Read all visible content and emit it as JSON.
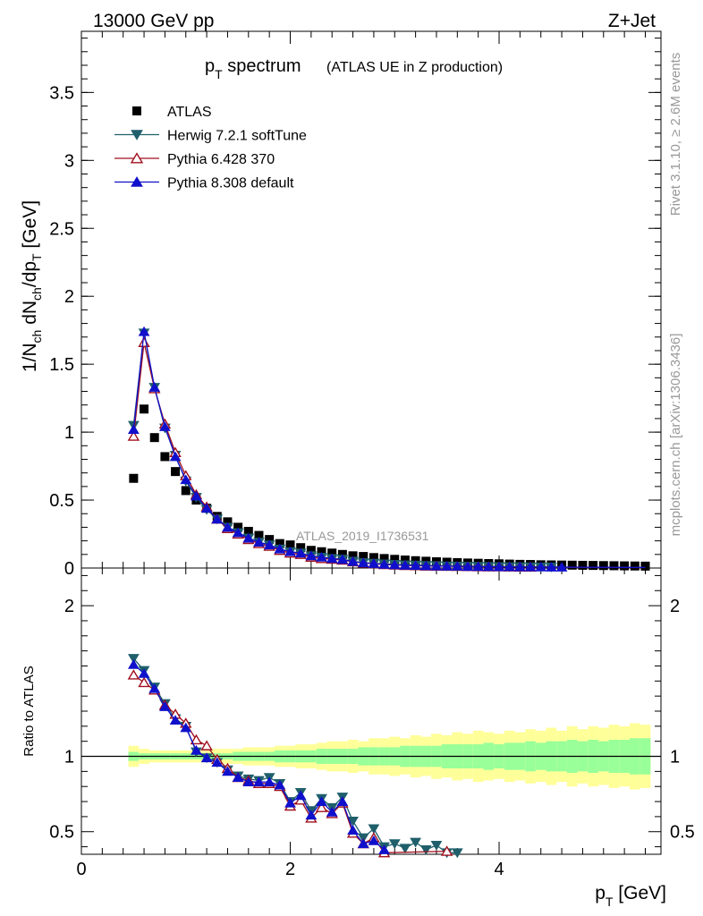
{
  "header": {
    "energy_label": "13000 GeV pp",
    "process_label": "Z+Jet"
  },
  "side_labels": {
    "rivet": "Rivet 3.1.10, ≥ 2.6M events",
    "mcplots": "mcplots.cern.ch [arXiv:1306.3436]"
  },
  "title": {
    "main": "p",
    "main_sub": "T",
    "main_rest": " spectrum",
    "sub": "(ATLAS UE in Z production)"
  },
  "watermark": "ATLAS_2019_I1736531",
  "colors": {
    "atlas": "#000000",
    "herwig": "#1f5f6b",
    "pythia6": "#a0101f",
    "pythia8": "#1010cc",
    "band_inner": "#99ff99",
    "band_outer": "#ffff99"
  },
  "chart_data": [
    {
      "type": "scatter",
      "panel": "main",
      "ylabel": "1/N_ch dN_ch/dp_T [GeV]",
      "ylim": [
        0,
        3.95
      ],
      "xlim": [
        0,
        5.55
      ],
      "y_ticks": [
        "0",
        "0.5",
        "1",
        "1.5",
        "2",
        "2.5",
        "3",
        "3.5"
      ],
      "legend_position": "top-left",
      "x": [
        0.5,
        0.6,
        0.7,
        0.8,
        0.9,
        1.0,
        1.1,
        1.2,
        1.3,
        1.4,
        1.5,
        1.6,
        1.7,
        1.8,
        1.9,
        2.0,
        2.1,
        2.2,
        2.3,
        2.4,
        2.5,
        2.6,
        2.7,
        2.8,
        2.9,
        3.0,
        3.1,
        3.2,
        3.3,
        3.4,
        3.5,
        3.6,
        3.7,
        3.8,
        3.9,
        4.0,
        4.1,
        4.2,
        4.3,
        4.4,
        4.5,
        4.6,
        4.7,
        4.8,
        4.9,
        5.0,
        5.1,
        5.2,
        5.3,
        5.4
      ],
      "series": [
        {
          "name": "ATLAS",
          "marker": "square",
          "values": [
            0.66,
            1.17,
            0.96,
            0.82,
            0.71,
            0.57,
            0.5,
            0.44,
            0.38,
            0.34,
            0.3,
            0.27,
            0.24,
            0.21,
            0.18,
            0.17,
            0.15,
            0.13,
            0.12,
            0.11,
            0.1,
            0.09,
            0.085,
            0.077,
            0.07,
            0.064,
            0.059,
            0.054,
            0.05,
            0.046,
            0.043,
            0.04,
            0.037,
            0.035,
            0.033,
            0.031,
            0.029,
            0.027,
            0.026,
            0.024,
            0.023,
            0.022,
            0.021,
            0.02,
            0.019,
            0.018,
            0.017,
            0.016,
            0.015,
            0.014
          ]
        },
        {
          "name": "Herwig 7.2.1 softTune",
          "marker": "triangle-down",
          "values": [
            1.05,
            1.73,
            1.33,
            1.03,
            0.83,
            0.64,
            0.52,
            0.43,
            0.36,
            0.3,
            0.26,
            0.22,
            0.19,
            0.17,
            0.14,
            0.12,
            0.11,
            0.09,
            0.08,
            0.07,
            0.065,
            0.05,
            0.04,
            0.035,
            0.03,
            0.027,
            0.023,
            0.021,
            0.019,
            0.017,
            0.015,
            0.014,
            0.013,
            0.012,
            0.011,
            0.01,
            0.009,
            0.0085,
            0.008,
            0.0075,
            0.007,
            0.0065,
            0.006,
            0.0057,
            0.0054,
            0.0051,
            0.0048,
            0.0045,
            0.0042,
            0.004
          ]
        },
        {
          "name": "Pythia 6.428 370",
          "marker": "triangle-up-open",
          "values": [
            0.97,
            1.66,
            1.32,
            1.06,
            0.85,
            0.68,
            0.54,
            0.45,
            0.36,
            0.29,
            0.25,
            0.21,
            0.18,
            0.16,
            0.13,
            0.11,
            0.1,
            0.08,
            0.07,
            0.065,
            0.058,
            0.046,
            0.036,
            0.032,
            0.025,
            0.022,
            0.019,
            0.017,
            0.015,
            0.014,
            0.013,
            0.012,
            0.011,
            0.01,
            0.009,
            0.0085,
            0.008,
            0.0075,
            0.007,
            0.0065,
            0.006,
            0.0056,
            0.0052,
            0.0049,
            0.0046,
            0.0043,
            0.004,
            0.0038,
            0.0036,
            0.0034
          ]
        },
        {
          "name": "Pythia 8.308 default",
          "marker": "triangle-up",
          "values": [
            1.02,
            1.74,
            1.33,
            1.04,
            0.82,
            0.65,
            0.53,
            0.44,
            0.36,
            0.3,
            0.26,
            0.22,
            0.19,
            0.17,
            0.14,
            0.12,
            0.11,
            0.09,
            0.08,
            0.07,
            0.063,
            0.048,
            0.038,
            0.033,
            0.027,
            0.024,
            0.021,
            0.019,
            0.017,
            0.015,
            0.014,
            0.013,
            0.012,
            0.011,
            0.01,
            0.0095,
            0.009,
            0.0085,
            0.008,
            0.0075,
            0.007,
            0.0066,
            0.0062,
            0.0058,
            0.0055,
            0.0052,
            0.0049,
            0.0046,
            0.0043,
            0.004
          ]
        }
      ]
    },
    {
      "type": "line",
      "panel": "ratio",
      "ylabel": "Ratio to ATLAS",
      "xlabel": "p_T [GeV]",
      "ylim": [
        0.35,
        2.25
      ],
      "xlim": [
        0,
        5.55
      ],
      "x_ticks": [
        "0",
        "2",
        "4"
      ],
      "y_ticks": [
        "0.5",
        "1",
        "2"
      ],
      "reference_line": 1,
      "band_x": [
        0.5,
        0.6,
        0.7,
        0.8,
        0.9,
        1.0,
        1.1,
        1.2,
        1.3,
        1.4,
        1.5,
        1.6,
        1.7,
        1.8,
        1.9,
        2.0,
        2.1,
        2.2,
        2.3,
        2.4,
        2.5,
        2.6,
        2.7,
        2.8,
        2.9,
        3.0,
        3.1,
        3.2,
        3.3,
        3.4,
        3.5,
        3.6,
        3.7,
        3.8,
        3.9,
        4.0,
        4.1,
        4.2,
        4.3,
        4.4,
        4.5,
        4.6,
        4.7,
        4.8,
        4.9,
        5.0,
        5.1,
        5.2,
        5.3,
        5.4
      ],
      "band_inner_halfwidth": [
        0.03,
        0.02,
        0.02,
        0.02,
        0.02,
        0.02,
        0.02,
        0.02,
        0.02,
        0.02,
        0.03,
        0.03,
        0.03,
        0.03,
        0.04,
        0.04,
        0.04,
        0.04,
        0.05,
        0.05,
        0.05,
        0.05,
        0.06,
        0.06,
        0.06,
        0.06,
        0.07,
        0.07,
        0.07,
        0.07,
        0.08,
        0.08,
        0.08,
        0.08,
        0.09,
        0.08,
        0.09,
        0.09,
        0.1,
        0.09,
        0.1,
        0.1,
        0.11,
        0.1,
        0.11,
        0.1,
        0.11,
        0.11,
        0.12,
        0.12
      ],
      "band_outer_halfwidth": [
        0.07,
        0.05,
        0.04,
        0.04,
        0.04,
        0.04,
        0.04,
        0.04,
        0.05,
        0.05,
        0.05,
        0.06,
        0.06,
        0.06,
        0.07,
        0.07,
        0.08,
        0.08,
        0.09,
        0.1,
        0.1,
        0.11,
        0.1,
        0.12,
        0.12,
        0.13,
        0.12,
        0.14,
        0.13,
        0.15,
        0.14,
        0.16,
        0.15,
        0.17,
        0.16,
        0.15,
        0.17,
        0.16,
        0.18,
        0.17,
        0.19,
        0.17,
        0.2,
        0.18,
        0.2,
        0.19,
        0.21,
        0.2,
        0.22,
        0.21
      ],
      "series": [
        {
          "name": "Herwig 7.2.1 softTune",
          "x": [
            0.5,
            0.6,
            0.7,
            0.8,
            0.9,
            1.0,
            1.1,
            1.2,
            1.3,
            1.4,
            1.5,
            1.6,
            1.7,
            1.8,
            1.9,
            2.0,
            2.1,
            2.2,
            2.3,
            2.4,
            2.5,
            2.6,
            2.7,
            2.8,
            2.9,
            3.0,
            3.1,
            3.2,
            3.3,
            3.4,
            3.5,
            3.6
          ],
          "values": [
            1.65,
            1.57,
            1.46,
            1.35,
            1.25,
            1.2,
            1.03,
            0.99,
            0.96,
            0.91,
            0.87,
            0.85,
            0.84,
            0.86,
            0.82,
            0.7,
            0.76,
            0.64,
            0.72,
            0.66,
            0.73,
            0.57,
            0.46,
            0.52,
            0.4,
            0.42,
            0.39,
            0.43,
            0.38,
            0.41,
            0.36,
            0.36
          ]
        },
        {
          "name": "Pythia 6.428 370",
          "x": [
            0.5,
            0.6,
            0.7,
            0.8,
            0.9,
            1.0,
            1.1,
            1.2,
            1.3,
            1.4,
            1.5,
            1.6,
            1.7,
            1.8,
            1.9,
            2.0,
            2.1,
            2.2,
            2.3,
            2.4,
            2.5,
            2.6,
            2.7,
            2.8,
            2.9,
            3.5
          ],
          "values": [
            1.54,
            1.49,
            1.44,
            1.34,
            1.28,
            1.22,
            1.11,
            1.07,
            0.98,
            0.92,
            0.86,
            0.84,
            0.82,
            0.82,
            0.8,
            0.67,
            0.71,
            0.59,
            0.66,
            0.62,
            0.69,
            0.49,
            0.42,
            0.46,
            0.36,
            0.37
          ]
        },
        {
          "name": "Pythia 8.308 default",
          "x": [
            0.5,
            0.6,
            0.7,
            0.8,
            0.9,
            1.0,
            1.1,
            1.2,
            1.3,
            1.4,
            1.5,
            1.6,
            1.7,
            1.8,
            1.9,
            2.0,
            2.1,
            2.2,
            2.3,
            2.4,
            2.5,
            2.6,
            2.7,
            2.8,
            2.9
          ],
          "values": [
            1.61,
            1.55,
            1.45,
            1.33,
            1.24,
            1.19,
            1.04,
            0.99,
            0.96,
            0.9,
            0.86,
            0.83,
            0.83,
            0.83,
            0.81,
            0.69,
            0.74,
            0.61,
            0.7,
            0.63,
            0.7,
            0.51,
            0.42,
            0.44,
            0.38
          ]
        }
      ]
    }
  ]
}
